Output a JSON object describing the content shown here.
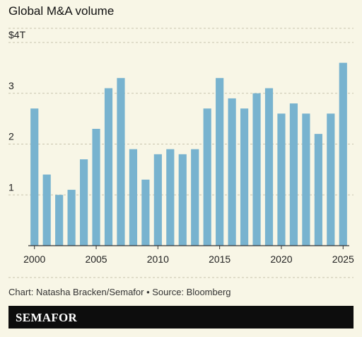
{
  "title": "Global M&A volume",
  "footer": {
    "credit": "Chart: Natasha Bracken/Semafor • Source: Bloomberg",
    "brand": "SEMAFOR"
  },
  "colors": {
    "bar": "#78b3cf",
    "background": "#f8f6e6",
    "grid": "#c8c4ad",
    "brand_bar": "#0d0d0d"
  },
  "chart_data": {
    "type": "bar",
    "title": "Global M&A volume",
    "xlabel": "",
    "ylabel": "",
    "categories": [
      "2000",
      "2001",
      "2002",
      "2003",
      "2004",
      "2005",
      "2006",
      "2007",
      "2008",
      "2009",
      "2010",
      "2011",
      "2012",
      "2013",
      "2014",
      "2015",
      "2016",
      "2017",
      "2018",
      "2019",
      "2020",
      "2021",
      "2022",
      "2023",
      "2024",
      "2025"
    ],
    "values": [
      2.7,
      1.4,
      1.0,
      1.1,
      1.7,
      2.3,
      3.1,
      3.3,
      1.9,
      1.3,
      1.8,
      1.9,
      1.8,
      1.9,
      2.7,
      3.3,
      2.9,
      2.7,
      3.0,
      3.1,
      2.6,
      2.8,
      2.6,
      2.2,
      2.6,
      3.6
    ],
    "ylim": [
      0,
      4
    ],
    "y_ticks": [
      {
        "value": 1,
        "label": "1"
      },
      {
        "value": 2,
        "label": "2"
      },
      {
        "value": 3,
        "label": "3"
      },
      {
        "value": 4,
        "label": "$4T"
      }
    ],
    "x_tick_labels": [
      "2000",
      "2005",
      "2010",
      "2015",
      "2020",
      "2025"
    ],
    "grid": true
  }
}
